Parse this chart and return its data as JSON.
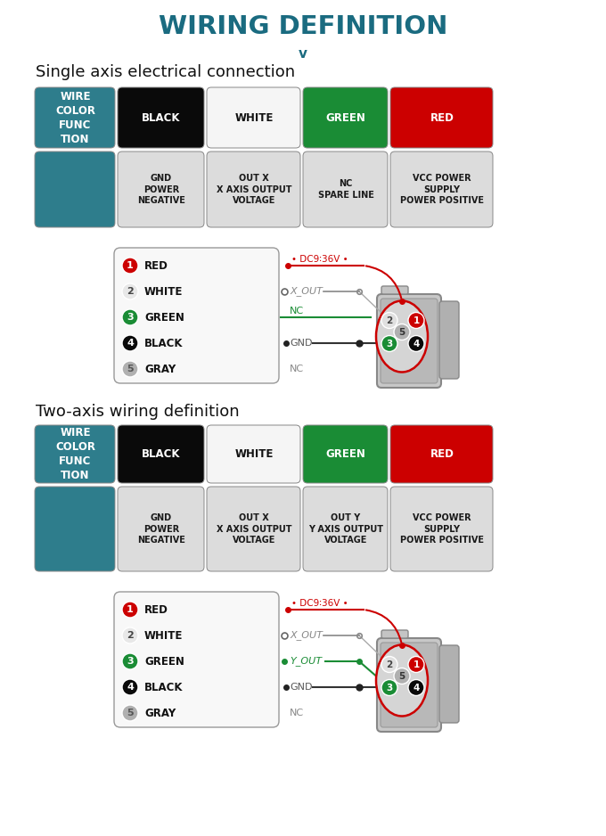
{
  "title": "WIRING DEFINITION",
  "title_color": "#1a6b80",
  "bg_color": "#ffffff",
  "section1_title": "Single axis electrical connection",
  "section2_title": "Two-axis wiring definition",
  "teal_color": "#2e7d8c",
  "black_color": "#0a0a0a",
  "green_color": "#1a8c35",
  "red_color": "#cc0000",
  "col_headers": [
    "WIRE\nCOLOR\nFUNC\nTION",
    "BLACK",
    "WHITE",
    "GREEN",
    "RED"
  ],
  "col_header_bg": [
    "#2e7d8c",
    "#0a0a0a",
    "#f5f5f5",
    "#1a8c35",
    "#cc0000"
  ],
  "col_header_fg": [
    "white",
    "white",
    "#111111",
    "white",
    "white"
  ],
  "single_func": [
    "",
    "GND\nPOWER\nNEGATIVE",
    "OUT X\nX AXIS OUTPUT\nVOLTAGE",
    "NC\nSPARE LINE",
    "VCC POWER\nSUPPLY\nPOWER POSITIVE"
  ],
  "dual_func": [
    "",
    "GND\nPOWER\nNEGATIVE",
    "OUT X\nX AXIS OUTPUT\nVOLTAGE",
    "OUT Y\nY AXIS OUTPUT\nVOLTAGE",
    "VCC POWER\nSUPPLY\nPOWER POSITIVE"
  ],
  "wire_labels": [
    "RED",
    "WHITE",
    "GREEN",
    "BLACK",
    "GRAY"
  ],
  "wire_circle_bg": [
    "#cc0000",
    "#e8e8e8",
    "#1a8c35",
    "#0a0a0a",
    "#b0b0b0"
  ],
  "wire_circle_fg": [
    "white",
    "#444444",
    "white",
    "white",
    "#555555"
  ],
  "single_signals": [
    "DC9~36V",
    "X_OUT",
    "NC",
    "GND",
    "NC"
  ],
  "dual_signals": [
    "DC9~36V",
    "X_OUT",
    "Y_OUT",
    "GND",
    "NC"
  ],
  "conn_pin_bg": [
    "#cc0000",
    "#e0e0e0",
    "#1a8c35",
    "#0a0a0a",
    "#b0b0b0"
  ],
  "conn_pin_fg": [
    "white",
    "#444444",
    "white",
    "white",
    "#333333"
  ]
}
